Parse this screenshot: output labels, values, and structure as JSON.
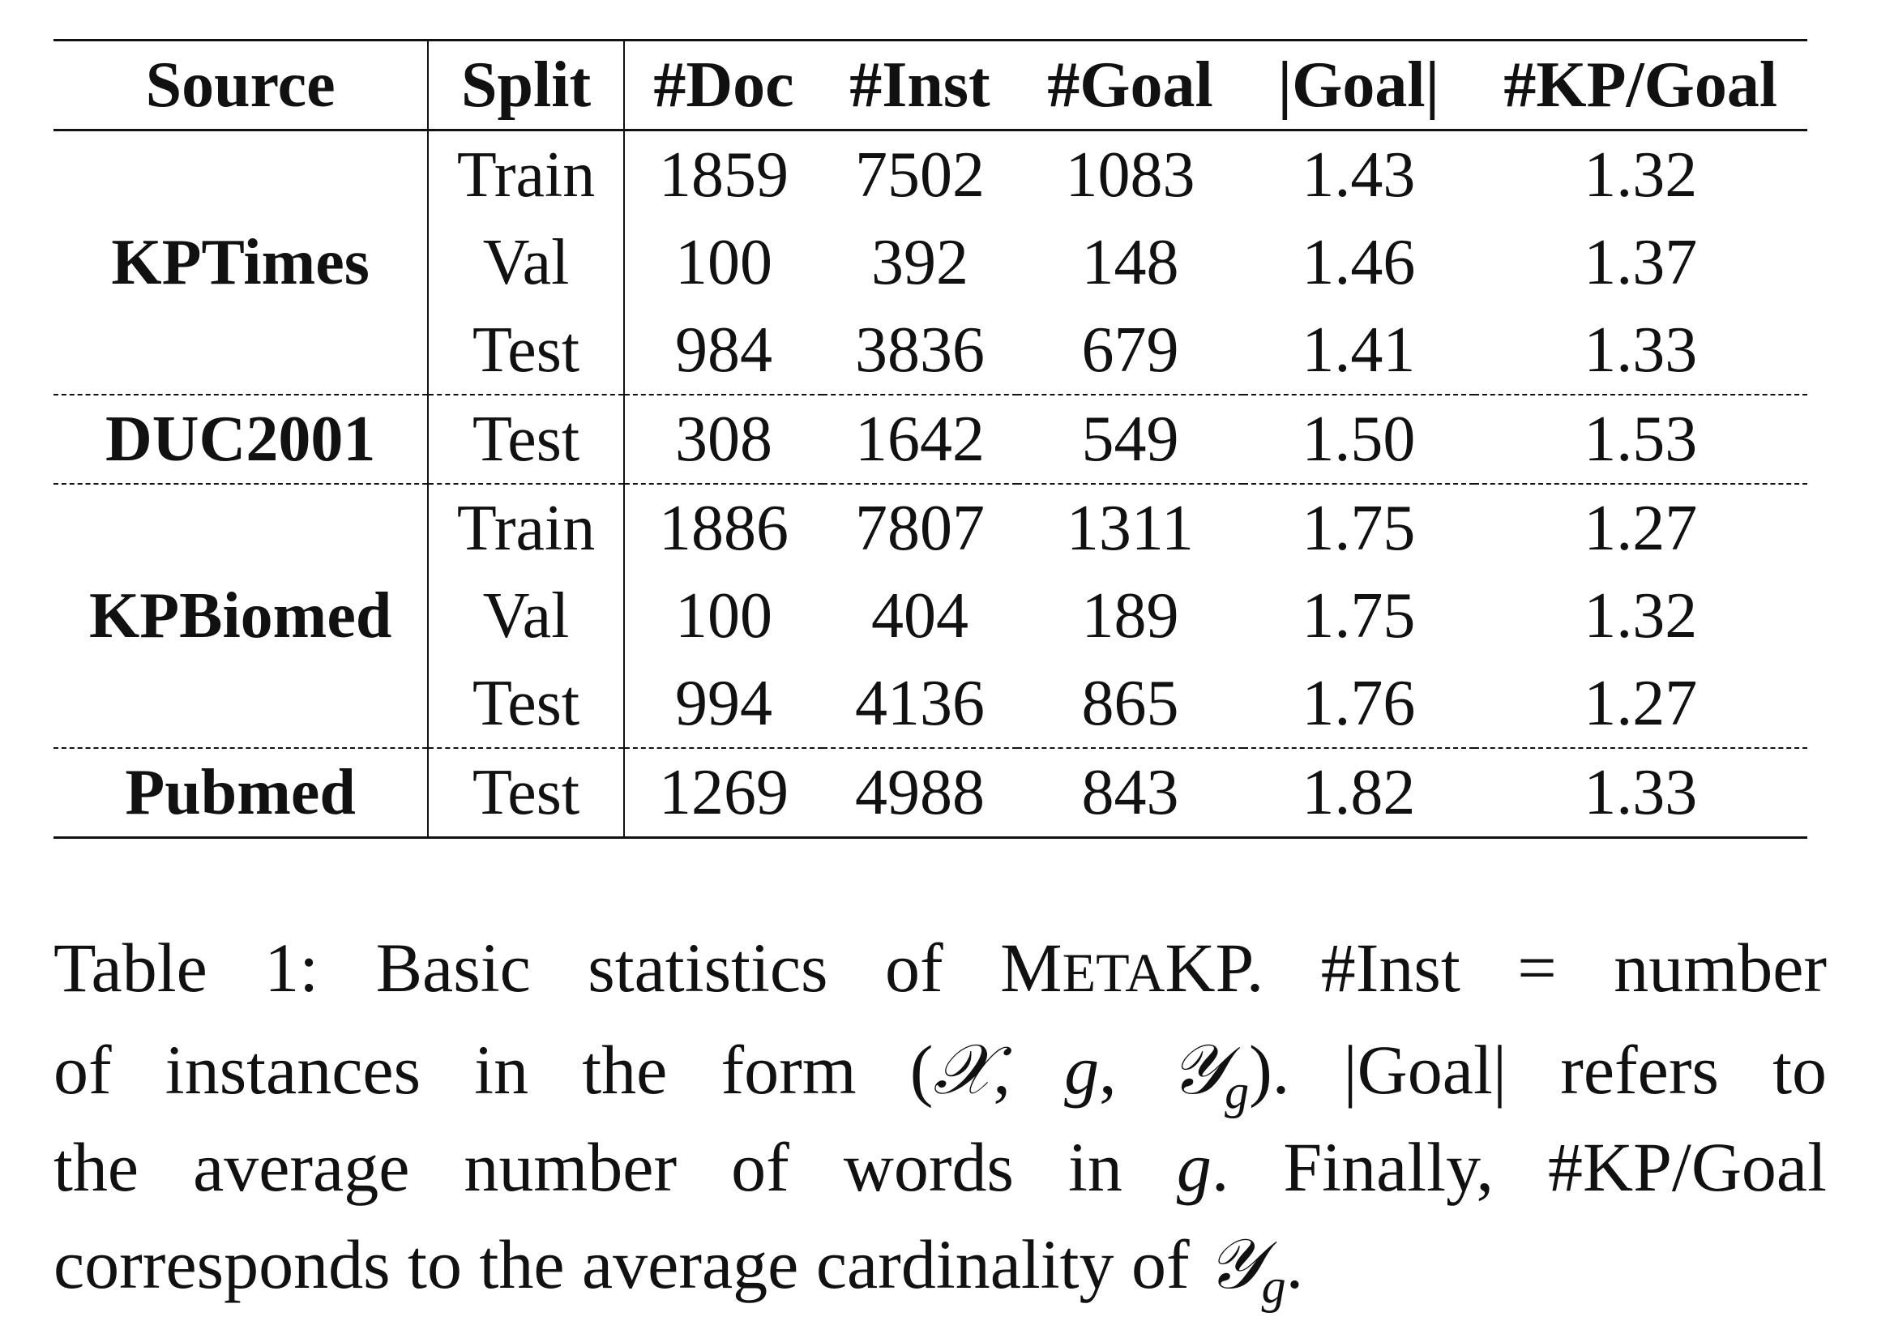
{
  "table": {
    "headers": [
      "Source",
      "Split",
      "#Doc",
      "#Inst",
      "#Goal",
      "|Goal|",
      "#KP/Goal"
    ],
    "groups": [
      {
        "source": "KPTimes",
        "rows": [
          {
            "split": "Train",
            "doc": "1859",
            "inst": "7502",
            "goal": "1083",
            "goal_len": "1.43",
            "kp_per_goal": "1.32"
          },
          {
            "split": "Val",
            "doc": "100",
            "inst": "392",
            "goal": "148",
            "goal_len": "1.46",
            "kp_per_goal": "1.37"
          },
          {
            "split": "Test",
            "doc": "984",
            "inst": "3836",
            "goal": "679",
            "goal_len": "1.41",
            "kp_per_goal": "1.33"
          }
        ]
      },
      {
        "source": "DUC2001",
        "rows": [
          {
            "split": "Test",
            "doc": "308",
            "inst": "1642",
            "goal": "549",
            "goal_len": "1.50",
            "kp_per_goal": "1.53"
          }
        ]
      },
      {
        "source": "KPBiomed",
        "rows": [
          {
            "split": "Train",
            "doc": "1886",
            "inst": "7807",
            "goal": "1311",
            "goal_len": "1.75",
            "kp_per_goal": "1.27"
          },
          {
            "split": "Val",
            "doc": "100",
            "inst": "404",
            "goal": "189",
            "goal_len": "1.75",
            "kp_per_goal": "1.32"
          },
          {
            "split": "Test",
            "doc": "994",
            "inst": "4136",
            "goal": "865",
            "goal_len": "1.76",
            "kp_per_goal": "1.27"
          }
        ]
      },
      {
        "source": "Pubmed",
        "rows": [
          {
            "split": "Test",
            "doc": "1269",
            "inst": "4988",
            "goal": "843",
            "goal_len": "1.82",
            "kp_per_goal": "1.33"
          }
        ]
      }
    ]
  },
  "caption": {
    "label": "Table 1:",
    "l1_a": "Basic statistics of",
    "name_M": "M",
    "name_ETA": "ETA",
    "name_KP": "KP",
    "l1_b": ". #Inst = number",
    "l2_a": "of instances in the form (",
    "sym_X": "𝒳",
    "comma1": ", ",
    "sym_g1": "g",
    "comma2": ", ",
    "sym_Y1": "𝒴",
    "sub_g1": "g",
    "l2_b": ").  |Goal| refers to",
    "l3_a": "the average number of words in",
    "sym_g2": "g",
    "l3_b": ". Finally, #KP/Goal",
    "l4_a": "corresponds to the average cardinality of",
    "sym_Y2": "𝒴",
    "sub_g2": "g",
    "l4_b": "."
  }
}
